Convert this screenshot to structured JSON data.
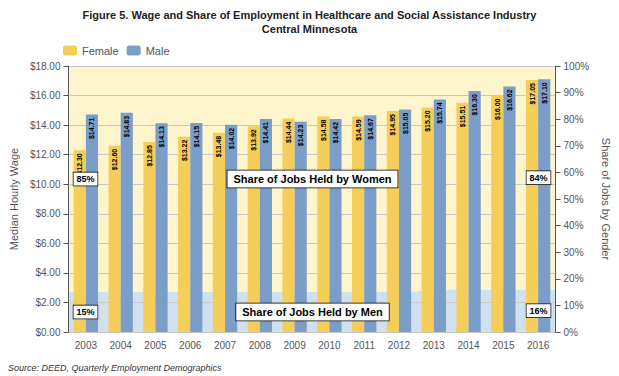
{
  "chart_data": {
    "type": "bar",
    "title": "Figure 5. Wage and Share of Employment in Healthcare and Social Assistance Industry",
    "subtitle": "Central Minnesota",
    "ylabel": "Median Hourly Wage",
    "y2label": "Share of Jobs by Gender",
    "annotations": [
      "Source: DEED, Quarterly Employment Demographics"
    ],
    "categories": [
      "2003",
      "2004",
      "2005",
      "2006",
      "2007",
      "2008",
      "2009",
      "2010",
      "2011",
      "2012",
      "2013",
      "2014",
      "2015",
      "2016"
    ],
    "series": [
      {
        "name": "Female",
        "type": "bar",
        "color": "#F5CE5A",
        "values": [
          12.3,
          12.6,
          12.85,
          13.22,
          13.48,
          13.92,
          14.44,
          14.58,
          14.59,
          14.95,
          15.2,
          15.51,
          16.0,
          17.05
        ],
        "value_labels": [
          "$12.30",
          "$12.60",
          "$12.85",
          "$13.22",
          "$13.48",
          "$13.92",
          "$14.44",
          "$14.58",
          "$14.59",
          "$14.95",
          "$15.20",
          "$15.51",
          "$16.00",
          "$17.05"
        ]
      },
      {
        "name": "Male",
        "type": "bar",
        "color": "#7B9EC8",
        "values": [
          14.71,
          14.83,
          14.13,
          14.15,
          14.02,
          14.41,
          14.23,
          14.42,
          14.67,
          15.05,
          15.74,
          16.3,
          16.62,
          17.1
        ],
        "value_labels": [
          "$14.71",
          "$14.83",
          "$14.13",
          "$14.15",
          "$14.02",
          "$14.41",
          "$14.23",
          "$14.42",
          "$14.67",
          "$15.05",
          "$15.74",
          "$16.30",
          "$16.62",
          "$17.10"
        ]
      },
      {
        "name": "Share of Jobs Held by Women",
        "type": "area",
        "axis": "y2",
        "stacked": true,
        "color": "#FEF5CC",
        "values": [
          0.85,
          0.85,
          0.85,
          0.85,
          0.85,
          0.85,
          0.85,
          0.85,
          0.85,
          0.85,
          0.84,
          0.84,
          0.84,
          0.84
        ],
        "value_labels": [
          "85%",
          null,
          null,
          null,
          null,
          null,
          null,
          null,
          null,
          null,
          null,
          null,
          null,
          "84%"
        ]
      },
      {
        "name": "Share of Jobs Held by Men",
        "type": "area",
        "axis": "y2",
        "stacked": true,
        "color": "#D0E0EF",
        "values": [
          0.15,
          0.15,
          0.15,
          0.15,
          0.15,
          0.15,
          0.15,
          0.15,
          0.15,
          0.15,
          0.16,
          0.16,
          0.16,
          0.16
        ],
        "value_labels": [
          "15%",
          null,
          null,
          null,
          null,
          null,
          null,
          null,
          null,
          null,
          null,
          null,
          null,
          "16%"
        ]
      }
    ],
    "ylim": [
      0,
      18
    ],
    "yticks": [
      {
        "value": 0,
        "label": "$0.00"
      },
      {
        "value": 2,
        "label": "$2.00"
      },
      {
        "value": 4,
        "label": "$4.00"
      },
      {
        "value": 6,
        "label": "$6.00"
      },
      {
        "value": 8,
        "label": "$8.00"
      },
      {
        "value": 10,
        "label": "$10.00"
      },
      {
        "value": 12,
        "label": "$12.00"
      },
      {
        "value": 14,
        "label": "$14.00"
      },
      {
        "value": 16,
        "label": "$16.00"
      },
      {
        "value": 18,
        "label": "$18.00"
      }
    ],
    "y2lim": [
      0,
      1.0
    ],
    "y2ticks": [
      {
        "value": 0,
        "label": "0%"
      },
      {
        "value": 0.1,
        "label": "10%"
      },
      {
        "value": 0.2,
        "label": "20%"
      },
      {
        "value": 0.3,
        "label": "30%"
      },
      {
        "value": 0.4,
        "label": "40%"
      },
      {
        "value": 0.5,
        "label": "50%"
      },
      {
        "value": 0.6,
        "label": "60%"
      },
      {
        "value": 0.7,
        "label": "70%"
      },
      {
        "value": 0.8,
        "label": "80%"
      },
      {
        "value": 0.9,
        "label": "90%"
      },
      {
        "value": 1.0,
        "label": "100%"
      }
    ],
    "grid": true,
    "legend": "upper left",
    "data_labels": true
  }
}
